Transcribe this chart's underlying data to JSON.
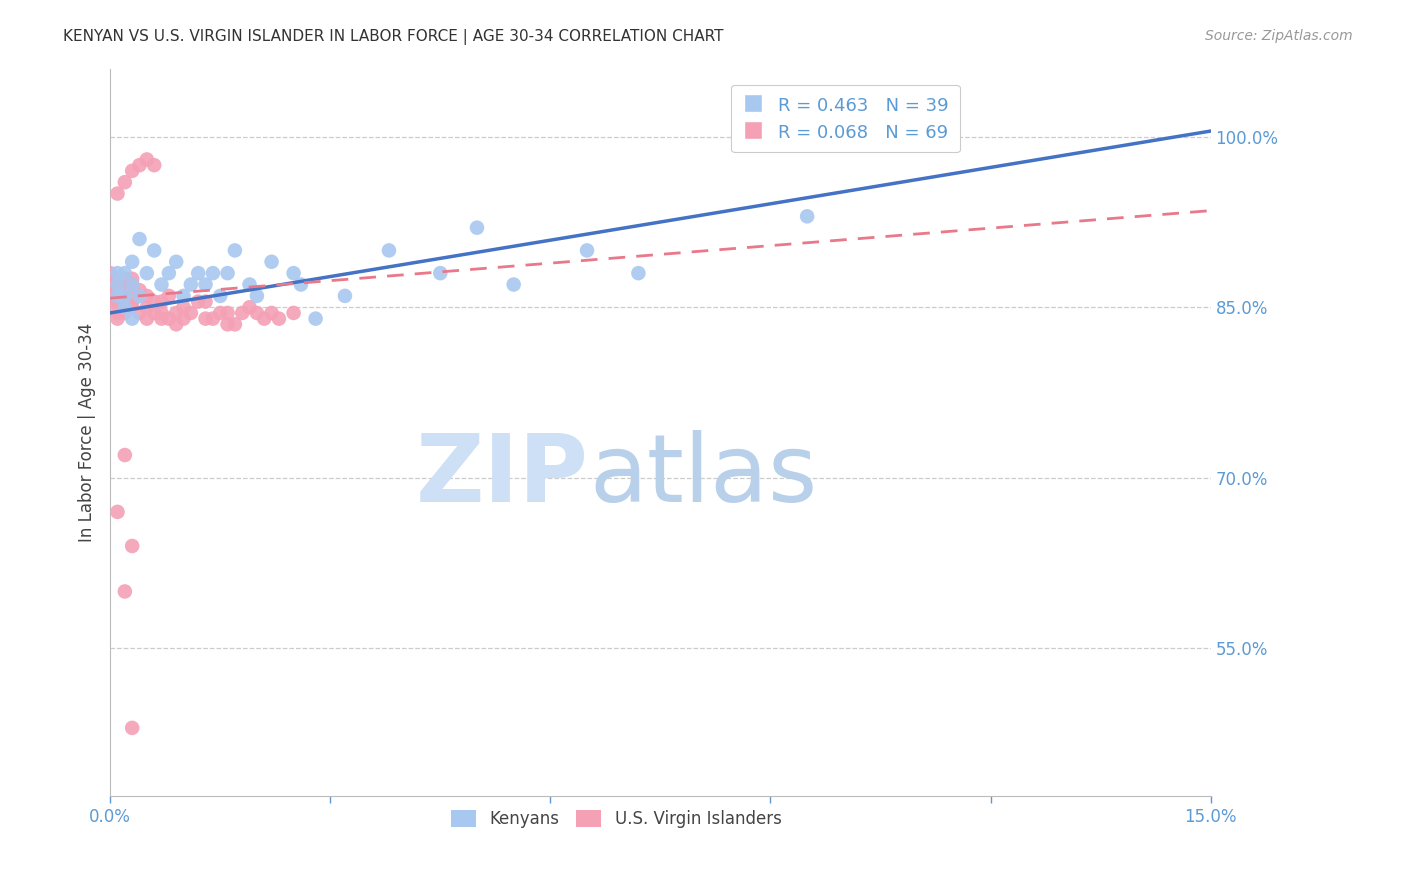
{
  "title": "KENYAN VS U.S. VIRGIN ISLANDER IN LABOR FORCE | AGE 30-34 CORRELATION CHART",
  "source": "Source: ZipAtlas.com",
  "ylabel": "In Labor Force | Age 30-34",
  "xlim": [
    0.0,
    0.15
  ],
  "ylim": [
    0.42,
    1.06
  ],
  "xticks": [
    0.0,
    0.03,
    0.06,
    0.09,
    0.12,
    0.15
  ],
  "xticklabels": [
    "0.0%",
    "",
    "",
    "",
    "",
    "15.0%"
  ],
  "ytick_right_vals": [
    1.0,
    0.85,
    0.7,
    0.55
  ],
  "ytick_right_labels": [
    "100.0%",
    "85.0%",
    "70.0%",
    "55.0%"
  ],
  "kenyan_R": 0.463,
  "kenyan_N": 39,
  "virgin_R": 0.068,
  "virgin_N": 69,
  "kenyan_color": "#a8c8f0",
  "virgin_color": "#f4a0b5",
  "kenyan_line_color": "#4472c4",
  "virgin_line_color": "#e8788a",
  "bg_color": "#ffffff",
  "grid_color": "#cccccc",
  "axis_color": "#bbbbbb",
  "title_color": "#333333",
  "label_color": "#5b9bd5",
  "source_color": "#999999",
  "watermark_zip_color": "#cde0f5",
  "watermark_atlas_color": "#b8d0ea",
  "kenyan_x": [
    0.001,
    0.001,
    0.001,
    0.002,
    0.002,
    0.002,
    0.003,
    0.003,
    0.003,
    0.004,
    0.004,
    0.005,
    0.006,
    0.007,
    0.008,
    0.009,
    0.01,
    0.011,
    0.012,
    0.013,
    0.014,
    0.015,
    0.016,
    0.017,
    0.019,
    0.02,
    0.022,
    0.025,
    0.026,
    0.028,
    0.032,
    0.038,
    0.045,
    0.05,
    0.055,
    0.065,
    0.072,
    0.095,
    0.11
  ],
  "kenyan_y": [
    0.87,
    0.88,
    0.86,
    0.85,
    0.88,
    0.86,
    0.84,
    0.87,
    0.89,
    0.91,
    0.86,
    0.88,
    0.9,
    0.87,
    0.88,
    0.89,
    0.86,
    0.87,
    0.88,
    0.87,
    0.88,
    0.86,
    0.88,
    0.9,
    0.87,
    0.86,
    0.89,
    0.88,
    0.87,
    0.84,
    0.86,
    0.9,
    0.88,
    0.92,
    0.87,
    0.9,
    0.88,
    0.93,
    1.0
  ],
  "virgin_x": [
    0.0,
    0.0,
    0.0,
    0.0,
    0.0,
    0.001,
    0.001,
    0.001,
    0.001,
    0.001,
    0.001,
    0.001,
    0.001,
    0.001,
    0.002,
    0.002,
    0.002,
    0.002,
    0.002,
    0.002,
    0.003,
    0.003,
    0.003,
    0.003,
    0.003,
    0.004,
    0.004,
    0.004,
    0.005,
    0.005,
    0.005,
    0.006,
    0.006,
    0.007,
    0.007,
    0.007,
    0.008,
    0.008,
    0.009,
    0.009,
    0.01,
    0.01,
    0.011,
    0.012,
    0.013,
    0.013,
    0.014,
    0.015,
    0.016,
    0.016,
    0.017,
    0.018,
    0.019,
    0.02,
    0.021,
    0.022,
    0.023,
    0.025,
    0.001,
    0.002,
    0.003,
    0.004,
    0.005,
    0.006,
    0.002,
    0.003,
    0.001,
    0.002,
    0.003
  ],
  "virgin_y": [
    0.88,
    0.875,
    0.86,
    0.855,
    0.87,
    0.87,
    0.855,
    0.86,
    0.875,
    0.845,
    0.86,
    0.87,
    0.855,
    0.84,
    0.875,
    0.86,
    0.845,
    0.875,
    0.865,
    0.855,
    0.855,
    0.865,
    0.87,
    0.855,
    0.875,
    0.86,
    0.845,
    0.865,
    0.85,
    0.84,
    0.86,
    0.845,
    0.855,
    0.84,
    0.845,
    0.855,
    0.84,
    0.86,
    0.845,
    0.835,
    0.85,
    0.84,
    0.845,
    0.855,
    0.84,
    0.855,
    0.84,
    0.845,
    0.835,
    0.845,
    0.835,
    0.845,
    0.85,
    0.845,
    0.84,
    0.845,
    0.84,
    0.845,
    0.95,
    0.96,
    0.97,
    0.975,
    0.98,
    0.975,
    0.72,
    0.64,
    0.67,
    0.6,
    0.48
  ],
  "kenyan_line_x0": 0.0,
  "kenyan_line_x1": 0.15,
  "kenyan_line_y0": 0.845,
  "kenyan_line_y1": 1.005,
  "virgin_line_x0": 0.0,
  "virgin_line_x1": 0.15,
  "virgin_line_y0": 0.858,
  "virgin_line_y1": 0.935
}
